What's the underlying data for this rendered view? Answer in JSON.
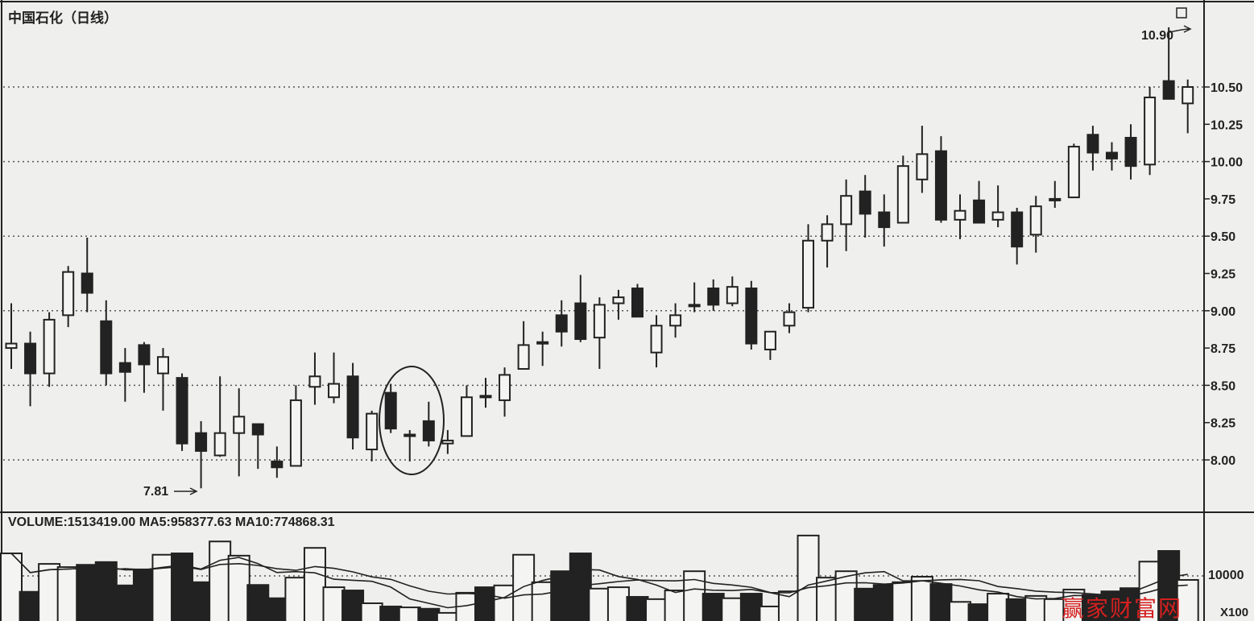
{
  "title": "中国石化（日线）",
  "volume_info": "VOLUME:1513419.00  MA5:958377.63  MA10:774868.31",
  "annotations": {
    "high": "10.90",
    "low": "7.81"
  },
  "volume_axis": {
    "tick": "10000",
    "unit": "X100"
  },
  "watermark": "赢家财富网",
  "colors": {
    "background": "#efefed",
    "ink": "#222222",
    "watermark": "#d42020"
  },
  "chart_data": {
    "type": "candlestick",
    "title": "中国石化（日线）",
    "ylim": [
      7.7,
      11.05
    ],
    "yticks": [
      "10.50",
      "10.25",
      "10.00",
      "9.75",
      "9.50",
      "9.25",
      "9.00",
      "8.75",
      "8.50",
      "8.25",
      "8.00"
    ],
    "grid": "dotted every 0.50",
    "ohlc": [
      [
        8.75,
        9.05,
        8.61,
        8.78
      ],
      [
        8.78,
        8.86,
        8.36,
        8.58
      ],
      [
        8.58,
        8.99,
        8.49,
        8.94
      ],
      [
        8.97,
        9.3,
        8.89,
        9.26
      ],
      [
        9.25,
        9.49,
        8.99,
        9.12
      ],
      [
        8.93,
        9.07,
        8.5,
        8.58
      ],
      [
        8.65,
        8.75,
        8.39,
        8.59
      ],
      [
        8.77,
        8.79,
        8.45,
        8.64
      ],
      [
        8.58,
        8.75,
        8.33,
        8.69
      ],
      [
        8.55,
        8.58,
        8.06,
        8.11
      ],
      [
        8.18,
        8.26,
        7.81,
        8.06
      ],
      [
        8.03,
        8.56,
        8.02,
        8.18
      ],
      [
        8.18,
        8.48,
        7.89,
        8.29
      ],
      [
        8.24,
        8.24,
        7.94,
        8.17
      ],
      [
        7.99,
        8.09,
        7.88,
        7.95
      ],
      [
        7.96,
        8.5,
        7.96,
        8.4
      ],
      [
        8.49,
        8.72,
        8.37,
        8.56
      ],
      [
        8.42,
        8.72,
        8.38,
        8.51
      ],
      [
        8.56,
        8.65,
        8.07,
        8.15
      ],
      [
        8.07,
        8.33,
        7.99,
        8.31
      ],
      [
        8.45,
        8.51,
        8.18,
        8.21
      ],
      [
        8.17,
        8.2,
        7.99,
        8.17
      ],
      [
        8.26,
        8.39,
        8.09,
        8.13
      ],
      [
        8.11,
        8.2,
        8.04,
        8.13
      ],
      [
        8.16,
        8.5,
        8.16,
        8.42
      ],
      [
        8.43,
        8.55,
        8.35,
        8.42
      ],
      [
        8.4,
        8.62,
        8.29,
        8.57
      ],
      [
        8.61,
        8.93,
        8.61,
        8.77
      ],
      [
        8.78,
        8.86,
        8.63,
        8.79
      ],
      [
        8.97,
        9.07,
        8.76,
        8.86
      ],
      [
        9.05,
        9.24,
        8.79,
        8.81
      ],
      [
        8.82,
        9.09,
        8.61,
        9.04
      ],
      [
        9.05,
        9.14,
        8.94,
        9.09
      ],
      [
        9.15,
        9.18,
        8.96,
        8.96
      ],
      [
        8.72,
        8.97,
        8.62,
        8.9
      ],
      [
        8.9,
        9.05,
        8.82,
        8.97
      ],
      [
        9.04,
        9.19,
        8.99,
        9.04
      ],
      [
        9.15,
        9.21,
        9.0,
        9.04
      ],
      [
        9.05,
        9.23,
        9.03,
        9.16
      ],
      [
        9.15,
        9.2,
        8.74,
        8.78
      ],
      [
        8.74,
        8.86,
        8.67,
        8.86
      ],
      [
        8.9,
        9.05,
        8.85,
        8.99
      ],
      [
        9.02,
        9.58,
        8.99,
        9.47
      ],
      [
        9.47,
        9.64,
        9.29,
        9.58
      ],
      [
        9.58,
        9.88,
        9.4,
        9.77
      ],
      [
        9.8,
        9.91,
        9.49,
        9.65
      ],
      [
        9.66,
        9.78,
        9.43,
        9.56
      ],
      [
        9.59,
        10.04,
        9.59,
        9.97
      ],
      [
        9.88,
        10.24,
        9.79,
        10.05
      ],
      [
        10.07,
        10.17,
        9.59,
        9.61
      ],
      [
        9.61,
        9.78,
        9.48,
        9.67
      ],
      [
        9.74,
        9.87,
        9.59,
        9.59
      ],
      [
        9.61,
        9.84,
        9.56,
        9.66
      ],
      [
        9.66,
        9.69,
        9.31,
        9.43
      ],
      [
        9.51,
        9.77,
        9.39,
        9.7
      ],
      [
        9.74,
        9.87,
        9.69,
        9.75
      ],
      [
        9.76,
        10.12,
        9.76,
        10.1
      ],
      [
        10.18,
        10.24,
        9.94,
        10.06
      ],
      [
        10.06,
        10.13,
        9.94,
        10.02
      ],
      [
        10.16,
        10.25,
        9.88,
        9.97
      ],
      [
        9.98,
        10.5,
        9.91,
        10.43
      ],
      [
        10.54,
        10.9,
        10.42,
        10.42
      ],
      [
        10.39,
        10.55,
        10.19,
        10.5
      ]
    ],
    "volume": [
      1460000,
      620000,
      1230000,
      1160000,
      1210000,
      1270000,
      760000,
      1110000,
      1430000,
      1460000,
      830000,
      1720000,
      1410000,
      770000,
      480000,
      930000,
      1580000,
      720000,
      650000,
      370000,
      300000,
      280000,
      250000,
      160000,
      600000,
      720000,
      760000,
      1430000,
      830000,
      1070000,
      1460000,
      690000,
      720000,
      510000,
      460000,
      650000,
      1070000,
      580000,
      480000,
      580000,
      300000,
      630000,
      1850000,
      930000,
      1070000,
      690000,
      770000,
      830000,
      950000,
      790000,
      400000,
      350000,
      580000,
      460000,
      530000,
      460000,
      670000,
      550000,
      630000,
      700000,
      1280000,
      1513419,
      880000
    ],
    "volume_series": [
      "VOLUME",
      "MA5",
      "MA10"
    ],
    "highlight": "circle around candles 21-23"
  }
}
